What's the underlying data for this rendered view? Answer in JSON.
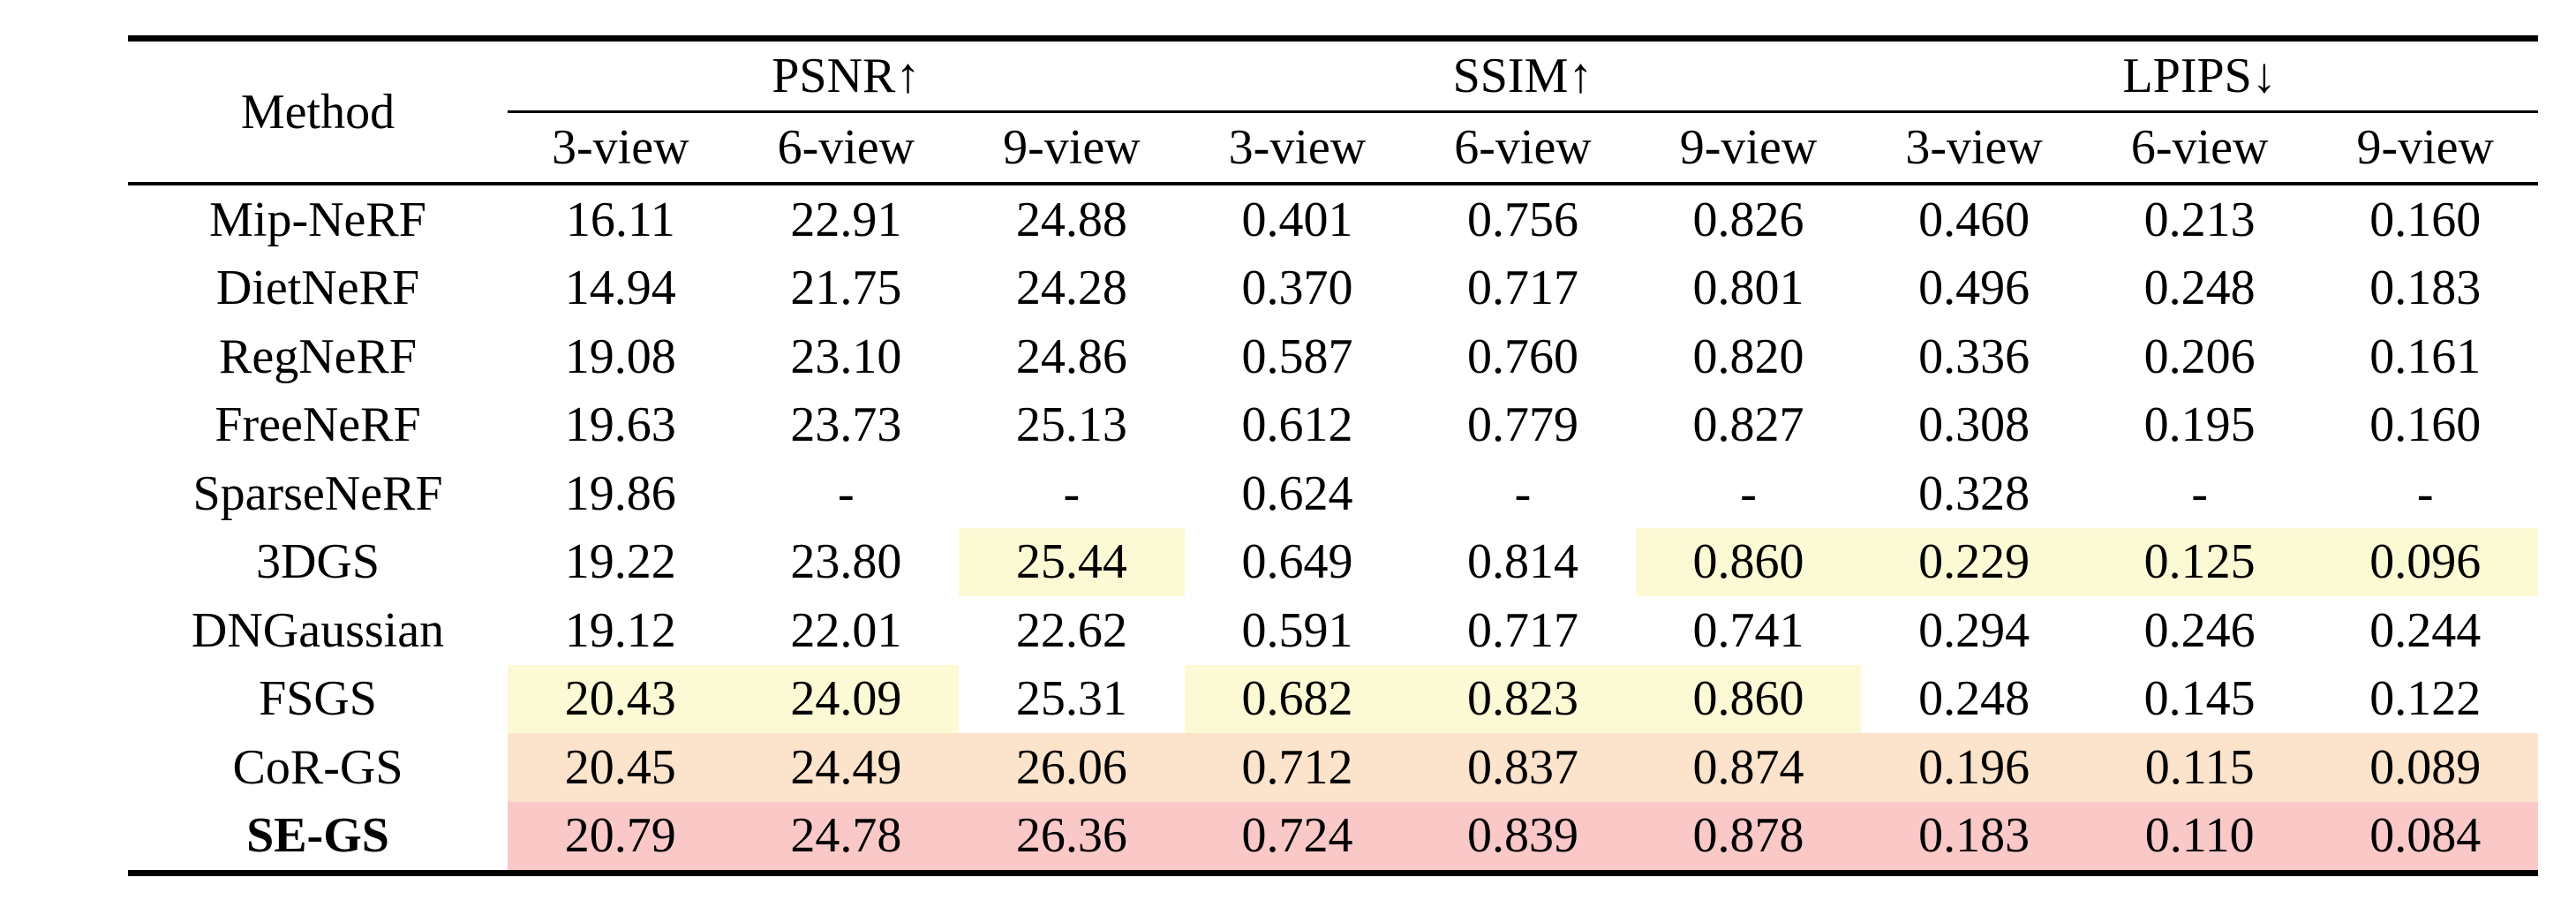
{
  "table": {
    "header": {
      "method_label": "Method",
      "groups": [
        {
          "label": "PSNR↑"
        },
        {
          "label": "SSIM↑"
        },
        {
          "label": "LPIPS↓"
        }
      ],
      "subcolumns": [
        "3-view",
        "6-view",
        "9-view",
        "3-view",
        "6-view",
        "9-view",
        "3-view",
        "6-view",
        "9-view"
      ]
    },
    "highlight_colors": {
      "yellow": "#FCFAD4",
      "orange": "#FCE3CB",
      "pink": "#F9C8C7"
    },
    "rows": [
      {
        "method": "Mip-NeRF",
        "bold": false,
        "values": [
          "16.11",
          "22.91",
          "24.88",
          "0.401",
          "0.756",
          "0.826",
          "0.460",
          "0.213",
          "0.160"
        ],
        "highlights": [
          null,
          null,
          null,
          null,
          null,
          null,
          null,
          null,
          null
        ]
      },
      {
        "method": "DietNeRF",
        "bold": false,
        "values": [
          "14.94",
          "21.75",
          "24.28",
          "0.370",
          "0.717",
          "0.801",
          "0.496",
          "0.248",
          "0.183"
        ],
        "highlights": [
          null,
          null,
          null,
          null,
          null,
          null,
          null,
          null,
          null
        ]
      },
      {
        "method": "RegNeRF",
        "bold": false,
        "values": [
          "19.08",
          "23.10",
          "24.86",
          "0.587",
          "0.760",
          "0.820",
          "0.336",
          "0.206",
          "0.161"
        ],
        "highlights": [
          null,
          null,
          null,
          null,
          null,
          null,
          null,
          null,
          null
        ]
      },
      {
        "method": "FreeNeRF",
        "bold": false,
        "values": [
          "19.63",
          "23.73",
          "25.13",
          "0.612",
          "0.779",
          "0.827",
          "0.308",
          "0.195",
          "0.160"
        ],
        "highlights": [
          null,
          null,
          null,
          null,
          null,
          null,
          null,
          null,
          null
        ]
      },
      {
        "method": "SparseNeRF",
        "bold": false,
        "values": [
          "19.86",
          "-",
          "-",
          "0.624",
          "-",
          "-",
          "0.328",
          "-",
          "-"
        ],
        "highlights": [
          null,
          null,
          null,
          null,
          null,
          null,
          null,
          null,
          null
        ]
      },
      {
        "method": "3DGS",
        "bold": false,
        "values": [
          "19.22",
          "23.80",
          "25.44",
          "0.649",
          "0.814",
          "0.860",
          "0.229",
          "0.125",
          "0.096"
        ],
        "highlights": [
          null,
          null,
          "yellow",
          null,
          null,
          "yellow",
          "yellow",
          "yellow",
          "yellow"
        ]
      },
      {
        "method": "DNGaussian",
        "bold": false,
        "values": [
          "19.12",
          "22.01",
          "22.62",
          "0.591",
          "0.717",
          "0.741",
          "0.294",
          "0.246",
          "0.244"
        ],
        "highlights": [
          null,
          null,
          null,
          null,
          null,
          null,
          null,
          null,
          null
        ]
      },
      {
        "method": "FSGS",
        "bold": false,
        "values": [
          "20.43",
          "24.09",
          "25.31",
          "0.682",
          "0.823",
          "0.860",
          "0.248",
          "0.145",
          "0.122"
        ],
        "highlights": [
          "yellow",
          "yellow",
          null,
          "yellow",
          "yellow",
          "yellow",
          null,
          null,
          null
        ]
      },
      {
        "method": "CoR-GS",
        "bold": false,
        "values": [
          "20.45",
          "24.49",
          "26.06",
          "0.712",
          "0.837",
          "0.874",
          "0.196",
          "0.115",
          "0.089"
        ],
        "highlights": [
          "orange",
          "orange",
          "orange",
          "orange",
          "orange",
          "orange",
          "orange",
          "orange",
          "orange"
        ]
      },
      {
        "method": "SE-GS",
        "bold": true,
        "values": [
          "20.79",
          "24.78",
          "26.36",
          "0.724",
          "0.839",
          "0.878",
          "0.183",
          "0.110",
          "0.084"
        ],
        "highlights": [
          "pink",
          "pink",
          "pink",
          "pink",
          "pink",
          "pink",
          "pink",
          "pink",
          "pink"
        ]
      }
    ]
  }
}
